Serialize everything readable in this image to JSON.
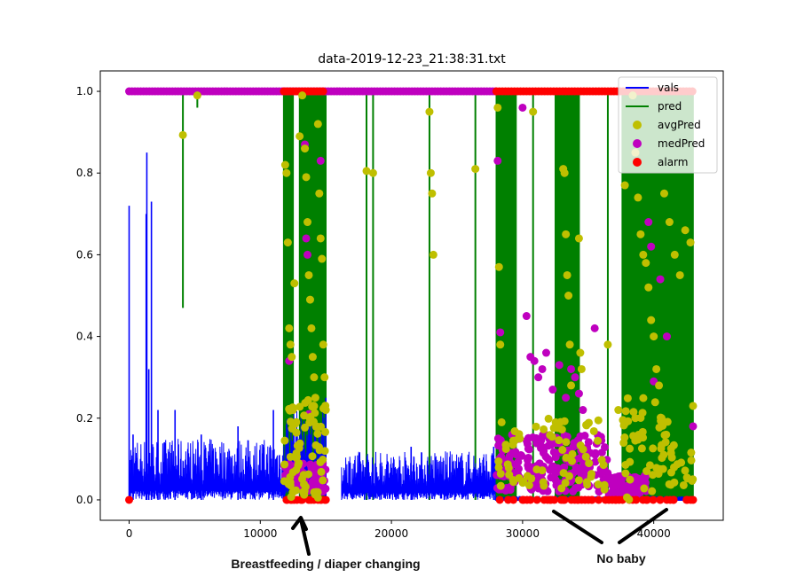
{
  "chart_data": {
    "type": "line",
    "title": "data-2019-12-23_21:38:31.txt",
    "xlabel": "",
    "ylabel": "",
    "xlim": [
      -2200,
      45300
    ],
    "ylim": [
      -0.05,
      1.05
    ],
    "x_ticks": [
      0,
      10000,
      20000,
      30000,
      40000
    ],
    "x_tick_labels": [
      "0",
      "10000",
      "20000",
      "30000",
      "40000"
    ],
    "y_ticks": [
      0.0,
      0.2,
      0.4,
      0.6,
      0.8,
      1.0
    ],
    "y_tick_labels": [
      "0.0",
      "0.2",
      "0.4",
      "0.6",
      "0.8",
      "1.0"
    ],
    "legend": {
      "position": "top-right",
      "entries": [
        {
          "label": "vals",
          "kind": "line",
          "color": "#0000ff"
        },
        {
          "label": "pred",
          "kind": "line",
          "color": "#008000"
        },
        {
          "label": "avgPred",
          "kind": "marker",
          "color": "#bfbf00"
        },
        {
          "label": "medPred",
          "kind": "marker",
          "color": "#bf00bf"
        },
        {
          "label": "alarm",
          "kind": "marker",
          "color": "#ff0000"
        }
      ]
    },
    "series": [
      {
        "name": "vals",
        "color": "#0000ff",
        "segments": [
          {
            "x_start": 0,
            "x_end": 11800,
            "baseline": 0.0,
            "typical_max": 0.15,
            "spikes": [
              [
                0,
                0.72
              ],
              [
                300,
                0.16
              ],
              [
                1300,
                0.7
              ],
              [
                1350,
                0.85
              ],
              [
                1500,
                0.32
              ],
              [
                1700,
                0.73
              ],
              [
                2200,
                0.22
              ],
              [
                3500,
                0.22
              ],
              [
                5500,
                0.16
              ],
              [
                8300,
                0.18
              ],
              [
                11000,
                0.22
              ]
            ]
          },
          {
            "x_start": 11800,
            "x_end": 15000,
            "baseline": 0.0,
            "typical_max": 0.22,
            "spikes": [
              [
                15000,
                0.25
              ]
            ]
          },
          {
            "x_start": 16200,
            "x_end": 27900,
            "baseline": 0.0,
            "typical_max": 0.12,
            "spikes": [
              [
                21500,
                0.13
              ],
              [
                27800,
                0.13
              ]
            ]
          },
          {
            "x_start": 27900,
            "x_end": 43000,
            "baseline": 0.0,
            "typical_max": 0.01,
            "spikes": []
          }
        ]
      },
      {
        "name": "pred",
        "color": "#008000",
        "baseline": 1.0,
        "isolated_drops": [
          [
            4100,
            0.47
          ],
          [
            5200,
            0.96
          ],
          [
            11800,
            0.0
          ],
          [
            18100,
            0.0
          ],
          [
            18600,
            0.0
          ],
          [
            22900,
            0.0
          ],
          [
            26400,
            0.0
          ],
          [
            28100,
            0.0
          ],
          [
            30800,
            0.0
          ],
          [
            33100,
            0.0
          ],
          [
            34300,
            0.0
          ],
          [
            36500,
            0.0
          ],
          [
            37800,
            0.0
          ],
          [
            39600,
            0.0
          ]
        ],
        "dense_regions": [
          [
            11800,
            12500
          ],
          [
            13000,
            15000
          ],
          [
            28000,
            29500
          ],
          [
            32500,
            34200
          ],
          [
            37600,
            43000
          ]
        ]
      },
      {
        "name": "avgPred",
        "color": "#bfbf00",
        "points": [
          [
            4100,
            0.893
          ],
          [
            5200,
            0.99
          ],
          [
            11900,
            0.82
          ],
          [
            12000,
            0.8
          ],
          [
            12100,
            0.63
          ],
          [
            12200,
            0.42
          ],
          [
            12300,
            0.38
          ],
          [
            12400,
            0.35
          ],
          [
            12500,
            0.22
          ],
          [
            12600,
            0.53
          ],
          [
            13000,
            0.89
          ],
          [
            13200,
            0.99
          ],
          [
            13400,
            0.86
          ],
          [
            13500,
            0.79
          ],
          [
            13600,
            0.68
          ],
          [
            13700,
            0.55
          ],
          [
            13800,
            0.49
          ],
          [
            13900,
            0.42
          ],
          [
            14000,
            0.35
          ],
          [
            14100,
            0.3
          ],
          [
            14200,
            0.25
          ],
          [
            14300,
            0.18
          ],
          [
            14400,
            0.92
          ],
          [
            14500,
            0.75
          ],
          [
            14600,
            0.64
          ],
          [
            14700,
            0.59
          ],
          [
            14800,
            0.38
          ],
          [
            14900,
            0.3
          ],
          [
            15000,
            0.22
          ],
          [
            18100,
            0.805
          ],
          [
            18600,
            0.8
          ],
          [
            22900,
            0.95
          ],
          [
            23000,
            0.8
          ],
          [
            23100,
            0.75
          ],
          [
            23200,
            0.6
          ],
          [
            26400,
            0.81
          ],
          [
            28100,
            0.96
          ],
          [
            28200,
            0.57
          ],
          [
            28300,
            0.38
          ],
          [
            28400,
            0.19
          ],
          [
            30800,
            0.95
          ],
          [
            33100,
            0.81
          ],
          [
            33200,
            0.8
          ],
          [
            33300,
            0.65
          ],
          [
            33400,
            0.55
          ],
          [
            33500,
            0.5
          ],
          [
            33600,
            0.38
          ],
          [
            33700,
            0.28
          ],
          [
            34300,
            0.64
          ],
          [
            34400,
            0.36
          ],
          [
            34500,
            0.32
          ],
          [
            36500,
            0.38
          ],
          [
            37300,
            0.22
          ],
          [
            37800,
            0.77
          ],
          [
            38400,
            0.99
          ],
          [
            38600,
            0.85
          ],
          [
            38800,
            0.74
          ],
          [
            39000,
            0.65
          ],
          [
            39200,
            0.6
          ],
          [
            39400,
            0.58
          ],
          [
            39600,
            0.52
          ],
          [
            39800,
            0.44
          ],
          [
            40000,
            0.4
          ],
          [
            40200,
            0.32
          ],
          [
            40400,
            0.28
          ],
          [
            40600,
            0.2
          ],
          [
            40800,
            0.75
          ],
          [
            41200,
            0.68
          ],
          [
            41600,
            0.6
          ],
          [
            42000,
            0.55
          ],
          [
            42400,
            0.66
          ],
          [
            42800,
            0.63
          ],
          [
            43000,
            0.23
          ]
        ]
      },
      {
        "name": "medPred",
        "color": "#bf00bf",
        "baseline": 1.0,
        "points": [
          [
            12200,
            0.34
          ],
          [
            13400,
            0.87
          ],
          [
            13500,
            0.64
          ],
          [
            13600,
            0.6
          ],
          [
            13700,
            0.21
          ],
          [
            14600,
            0.83
          ],
          [
            28100,
            0.83
          ],
          [
            28300,
            0.41
          ],
          [
            30000,
            0.96
          ],
          [
            30300,
            0.45
          ],
          [
            30600,
            0.35
          ],
          [
            30900,
            0.34
          ],
          [
            31200,
            0.3
          ],
          [
            31500,
            0.32
          ],
          [
            31800,
            0.36
          ],
          [
            32300,
            0.27
          ],
          [
            32800,
            0.33
          ],
          [
            33300,
            0.25
          ],
          [
            33700,
            0.32
          ],
          [
            34000,
            0.3
          ],
          [
            34300,
            0.26
          ],
          [
            34600,
            0.22
          ],
          [
            35500,
            0.42
          ],
          [
            39600,
            0.68
          ],
          [
            39800,
            0.62
          ],
          [
            40000,
            0.29
          ],
          [
            40500,
            0.54
          ],
          [
            41000,
            0.4
          ],
          [
            43000,
            0.18
          ]
        ],
        "clusters": [
          {
            "x_range": [
              11800,
              15000
            ],
            "y_range": [
              0.02,
              0.09
            ]
          },
          {
            "x_range": [
              28000,
              36500
            ],
            "y_range": [
              0.02,
              0.16
            ]
          },
          {
            "x_range": [
              36500,
              39500
            ],
            "y_range": [
              0.01,
              0.06
            ]
          }
        ]
      },
      {
        "name": "alarm",
        "color": "#ff0000",
        "points": [
          [
            0,
            0.0
          ],
          [
            12000,
            0.0
          ],
          [
            12400,
            0.0
          ],
          [
            12800,
            0.0
          ],
          [
            13200,
            0.0
          ],
          [
            13700,
            0.0
          ],
          [
            14100,
            0.0
          ],
          [
            14600,
            0.0
          ],
          [
            15000,
            0.0
          ],
          [
            28900,
            0.0
          ],
          [
            30000,
            0.0
          ],
          [
            31100,
            0.0
          ],
          [
            32100,
            0.0
          ],
          [
            33100,
            0.0
          ],
          [
            34200,
            0.0
          ],
          [
            35300,
            0.0
          ],
          [
            37100,
            0.0
          ],
          [
            38400,
            0.0
          ],
          [
            39500,
            0.0
          ],
          [
            40500,
            0.0
          ],
          [
            41500,
            0.0
          ],
          [
            42500,
            0.0
          ],
          [
            43000,
            0.0
          ]
        ],
        "high_ranges": [
          [
            11800,
            15000
          ],
          [
            28000,
            43000
          ]
        ]
      }
    ],
    "annotations": [
      {
        "text": "Breastfeeding / diaper changing",
        "points_to_x": 13200
      },
      {
        "text": "No baby",
        "points_to_x": 32000
      }
    ]
  }
}
